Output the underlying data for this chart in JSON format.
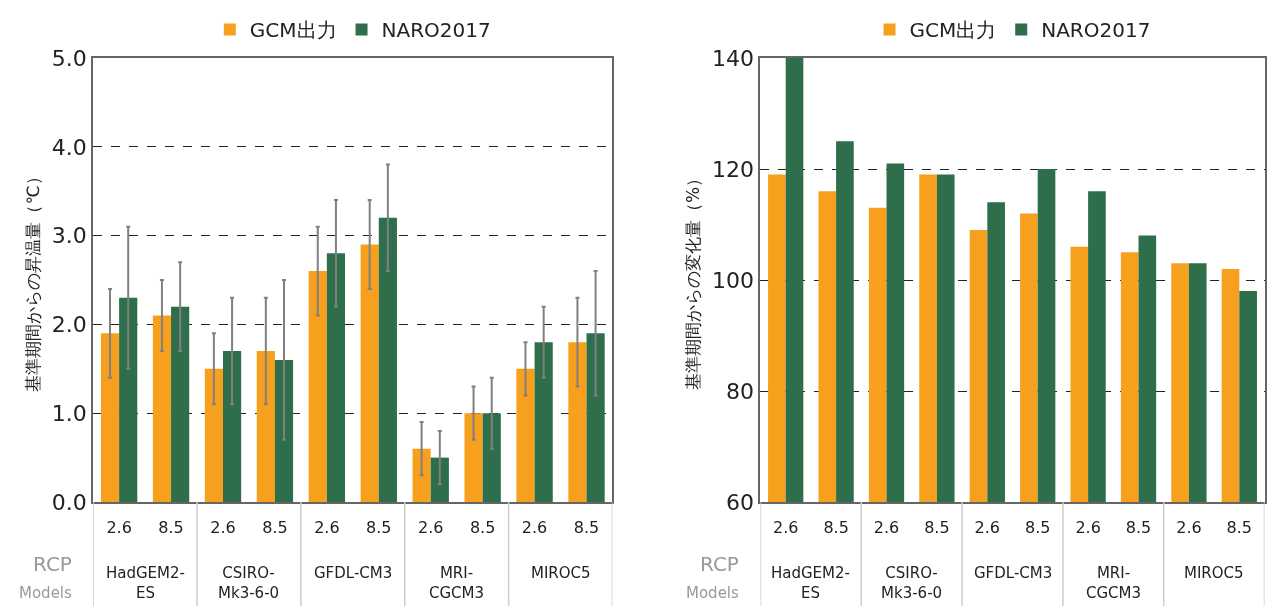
{
  "chart_data": [
    {
      "type": "bar",
      "ylabel": "基準期間からの昇温量（℃）",
      "categories": [
        "2.6",
        "8.5",
        "2.6",
        "8.5",
        "2.6",
        "8.5",
        "2.6",
        "8.5",
        "2.6",
        "8.5"
      ],
      "series": [
        {
          "name": "GCM出力",
          "color": "#f7a01e",
          "values": [
            1.9,
            2.1,
            1.5,
            1.7,
            2.6,
            2.9,
            0.6,
            1.0,
            1.5,
            1.8
          ],
          "errors": [
            [
              1.4,
              2.4
            ],
            [
              1.7,
              2.5
            ],
            [
              1.1,
              1.9
            ],
            [
              1.1,
              2.3
            ],
            [
              2.1,
              3.1
            ],
            [
              2.4,
              3.4
            ],
            [
              0.3,
              0.9
            ],
            [
              0.7,
              1.3
            ],
            [
              1.2,
              1.8
            ],
            [
              1.3,
              2.3
            ]
          ]
        },
        {
          "name": "NARO2017",
          "color": "#2e6e4a",
          "values": [
            2.3,
            2.2,
            1.7,
            1.6,
            2.8,
            3.2,
            0.5,
            1.0,
            1.8,
            1.9
          ],
          "errors": [
            [
              1.5,
              3.1
            ],
            [
              1.7,
              2.7
            ],
            [
              1.1,
              2.3
            ],
            [
              0.7,
              2.5
            ],
            [
              2.2,
              3.4
            ],
            [
              2.6,
              3.8
            ],
            [
              0.2,
              0.8
            ],
            [
              0.6,
              1.4
            ],
            [
              1.4,
              2.2
            ],
            [
              1.2,
              2.6
            ]
          ]
        }
      ],
      "ylim": [
        0,
        5
      ],
      "yticks": [
        {
          "value": 0,
          "label": "0.0"
        },
        {
          "value": 1,
          "label": "1.0"
        },
        {
          "value": 2,
          "label": "2.0"
        },
        {
          "value": 3,
          "label": "3.0"
        },
        {
          "value": 4,
          "label": "4.0"
        },
        {
          "value": 5,
          "label": "5.0"
        }
      ],
      "grid": "y",
      "legend": "top",
      "annotations": [
        "RCP",
        "Models",
        "HadGEM2-\nES",
        "CSIRO-\nMk3-6-0",
        "GFDL-CM3",
        "MRI-\nCGCM3",
        "MIROC5"
      ]
    },
    {
      "type": "bar",
      "ylabel": "基準期間からの変化量（%）",
      "categories": [
        "2.6",
        "8.5",
        "2.6",
        "8.5",
        "2.6",
        "8.5",
        "2.6",
        "8.5",
        "2.6",
        "8.5"
      ],
      "series": [
        {
          "name": "GCM出力",
          "color": "#f7a01e",
          "values": [
            119,
            116,
            113,
            119,
            109,
            112,
            106,
            105,
            103,
            102
          ]
        },
        {
          "name": "NARO2017",
          "color": "#2e6e4a",
          "values": [
            140,
            125,
            121,
            119,
            114,
            120,
            116,
            108,
            103,
            98
          ]
        }
      ],
      "ylim": [
        60,
        140
      ],
      "yticks": [
        60,
        80,
        100,
        120,
        140
      ],
      "grid": "y",
      "legend": "top",
      "annotations": [
        "RCP",
        "Models",
        "HadGEM2-\nES",
        "CSIRO-\nMk3-6-0",
        "GFDL-CM3",
        "MRI-\nCGCM3",
        "MIROC5"
      ]
    }
  ]
}
